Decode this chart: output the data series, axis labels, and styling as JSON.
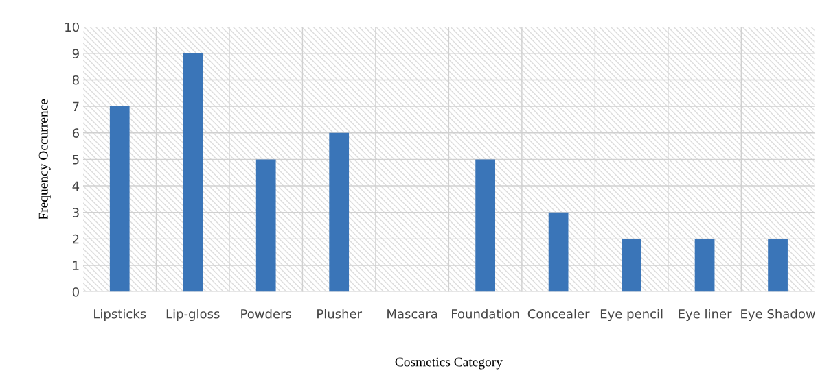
{
  "chart_data": {
    "type": "bar",
    "xlabel": "Cosmetics Category",
    "ylabel": "Frequency Occurrence",
    "categories": [
      "Lipsticks",
      "Lip-gloss",
      "Powders",
      "Plusher",
      "Mascara",
      "Foundation",
      "Concealer",
      "Eye pencil",
      "Eye liner",
      "Eye Shadow"
    ],
    "values": [
      7,
      9,
      5,
      6,
      0,
      5,
      3,
      2,
      2,
      2
    ],
    "color": "#3a75b8",
    "ylim": [
      0,
      10
    ],
    "yticks": [
      0,
      1,
      2,
      3,
      4,
      5,
      6,
      7,
      8,
      9,
      10
    ],
    "grid": true
  }
}
